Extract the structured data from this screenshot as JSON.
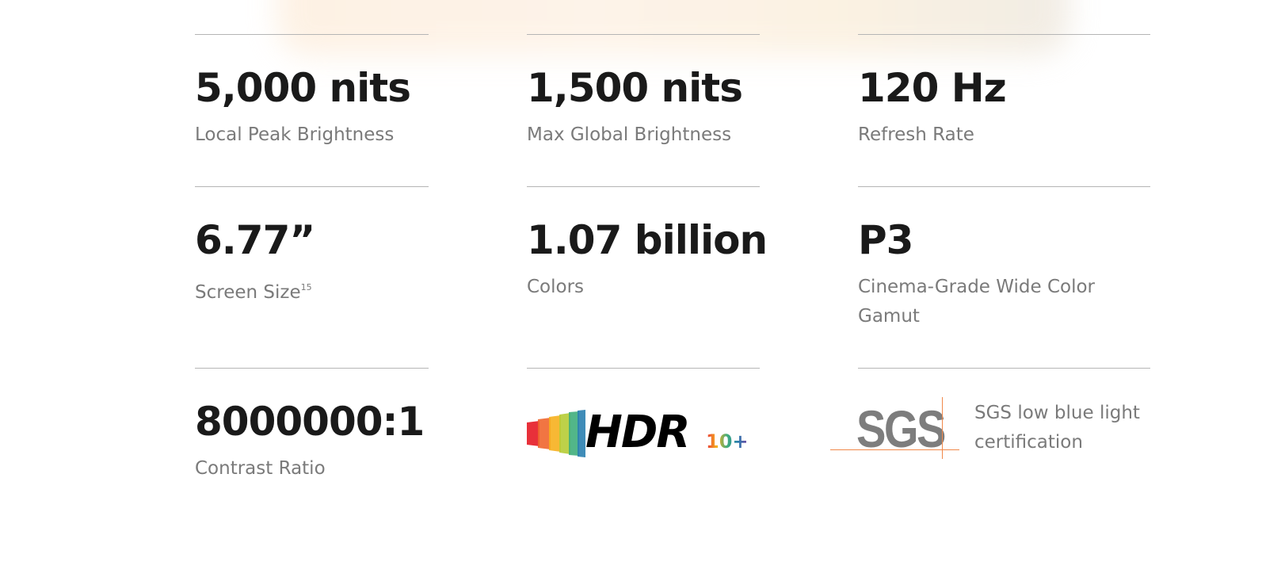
{
  "specs": [
    {
      "value": "5,000 nits",
      "label": "Local Peak Brightness"
    },
    {
      "value": "1,500 nits",
      "label": "Max Global Brightness"
    },
    {
      "value": "120 Hz",
      "label": "Refresh Rate"
    },
    {
      "value": "6.77”",
      "label": "Screen Size",
      "footnote": "15"
    },
    {
      "value": "1.07 billion",
      "label": "Colors"
    },
    {
      "value": "P3",
      "label": "Cinema-Grade Wide Color Gamut"
    },
    {
      "value": "8000000:1",
      "label": "Contrast Ratio"
    }
  ],
  "hdr_logo": {
    "text": "HDR",
    "suffix": "10+"
  },
  "sgs": {
    "logo_text": "SGS",
    "label": "SGS low blue light certification",
    "accent": "#f0884a"
  }
}
